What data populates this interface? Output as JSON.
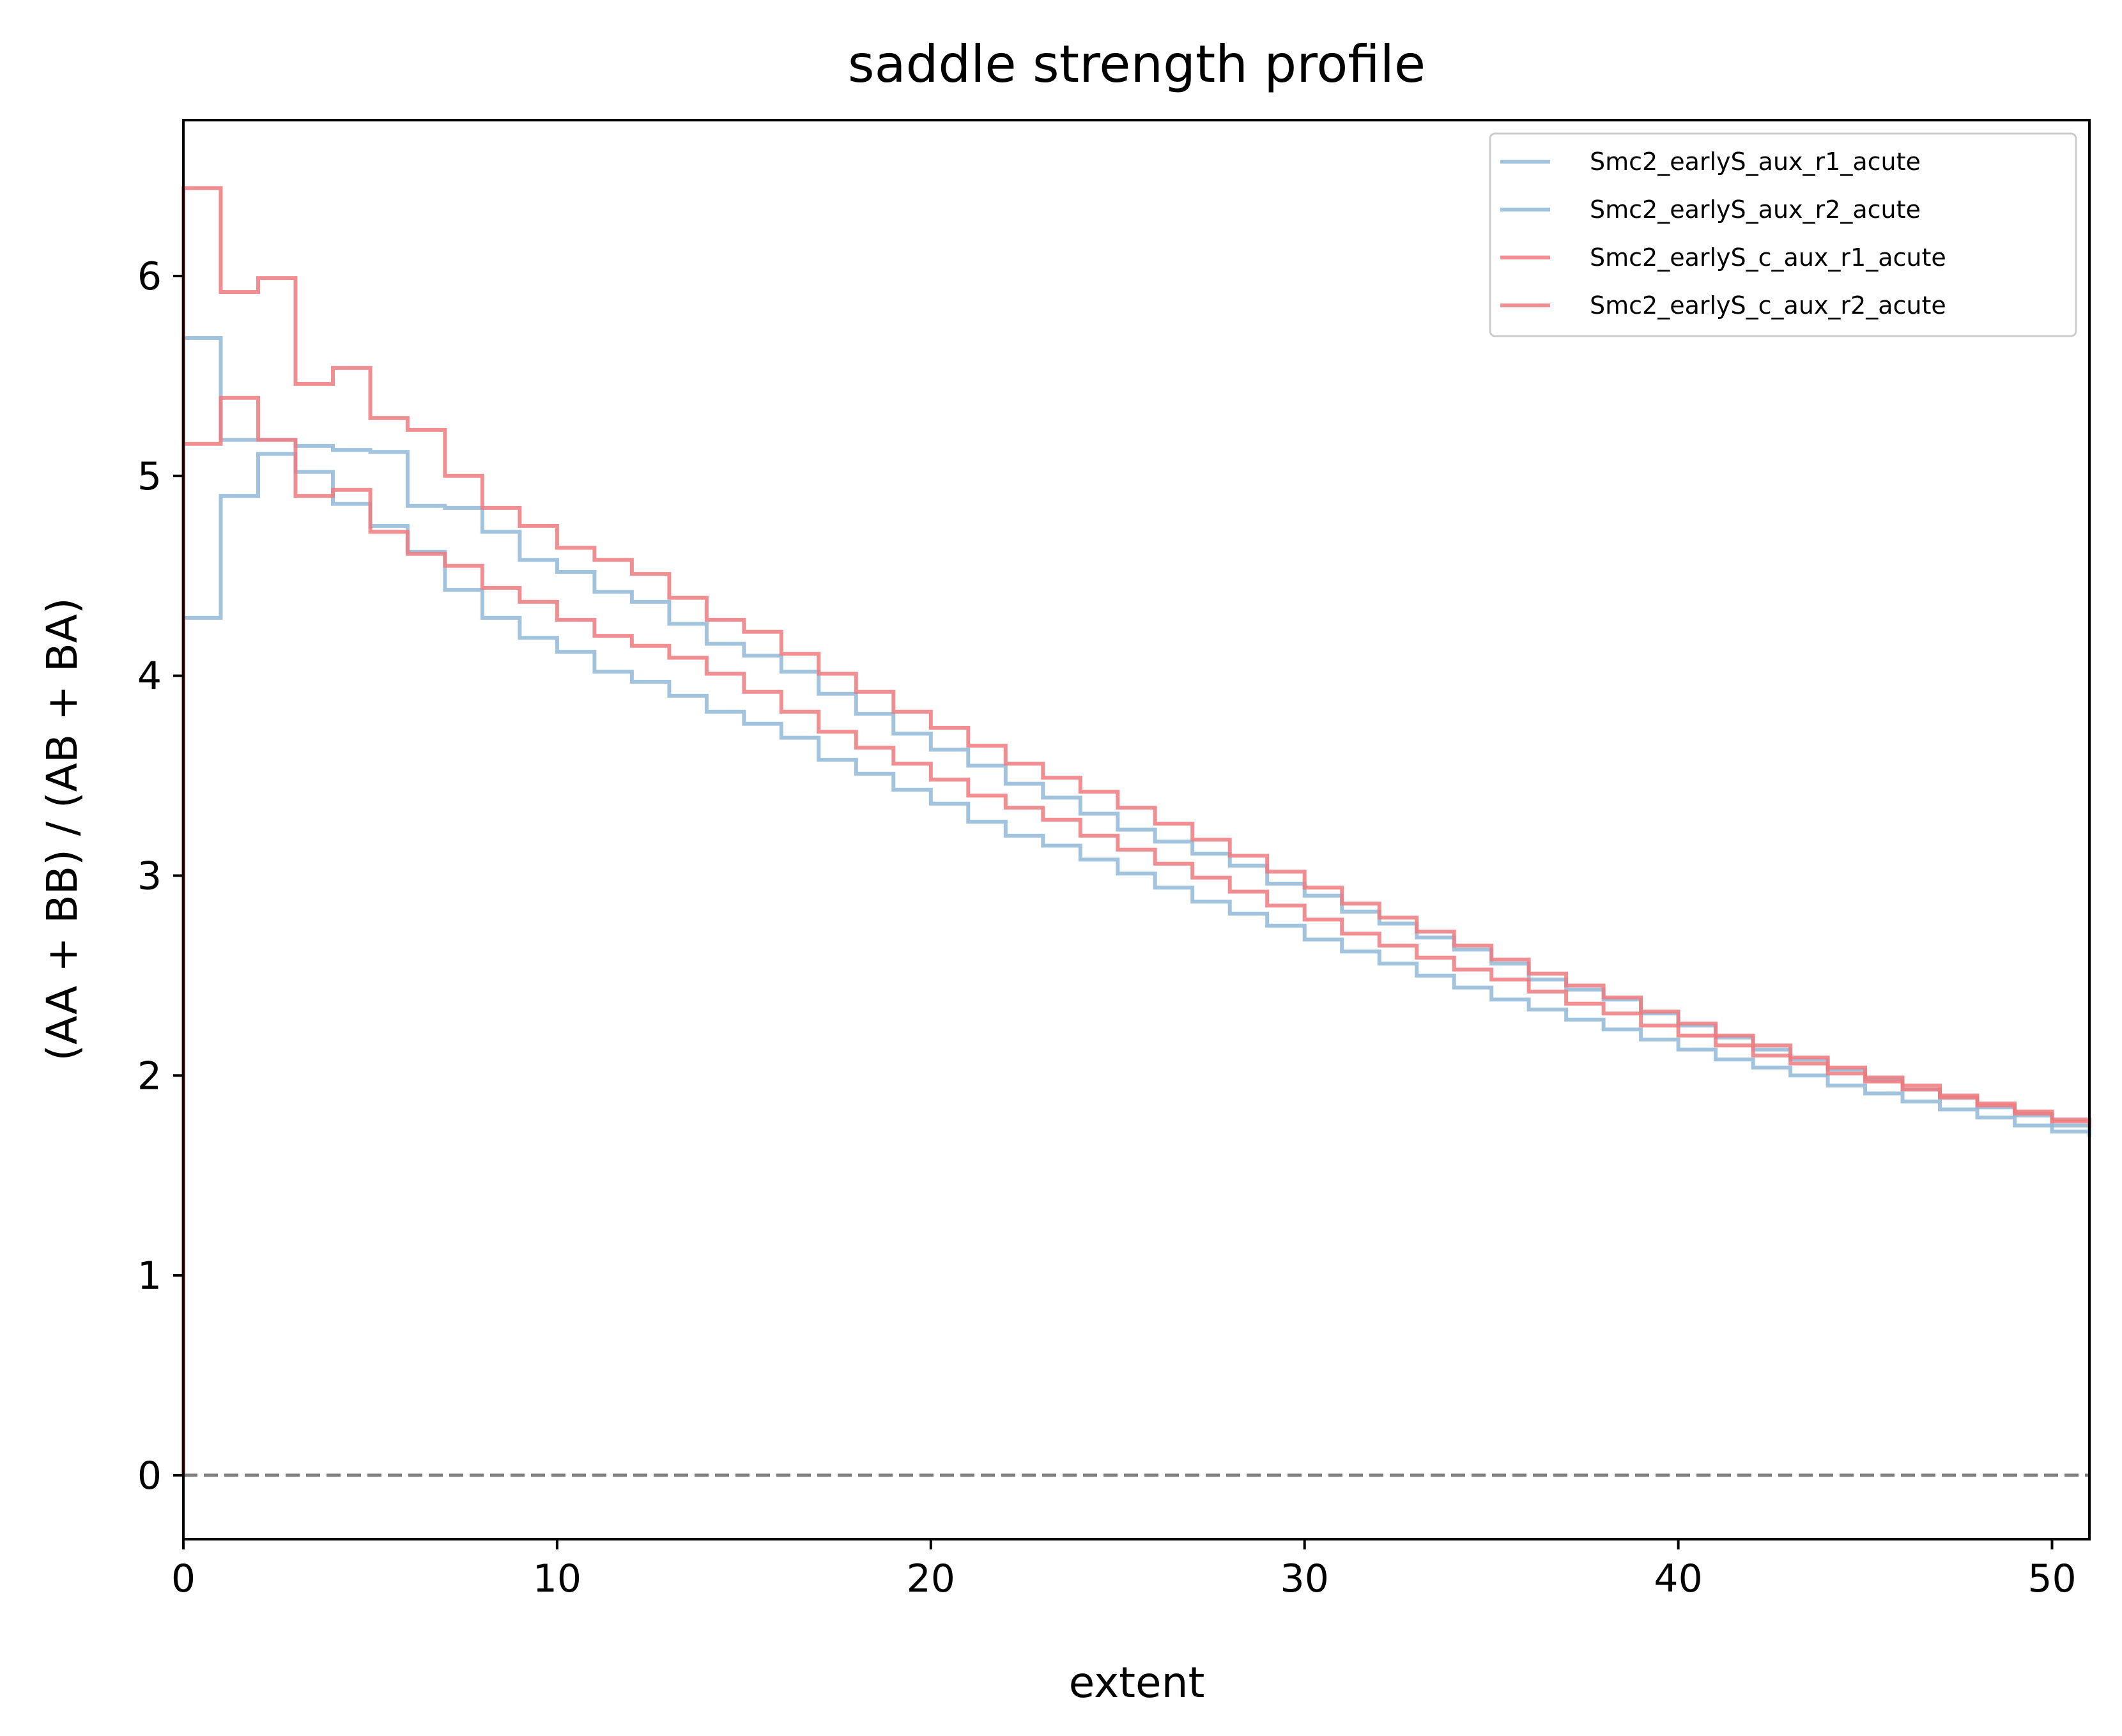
{
  "chart_data": {
    "type": "line",
    "step": "post",
    "title": "saddle strength profile",
    "xlabel": "extent",
    "ylabel": "(AA + BB) / (AB + BA)",
    "xlim": [
      0,
      51
    ],
    "ylim": [
      -0.32,
      6.78
    ],
    "xticks": [
      0,
      10,
      20,
      30,
      40,
      50
    ],
    "yticks": [
      0,
      1,
      2,
      3,
      4,
      5,
      6
    ],
    "grid": false,
    "legend_position": "top-right",
    "reference_line": {
      "y": 0,
      "style": "dashed",
      "color": "#808080"
    },
    "x": [
      0,
      1,
      2,
      3,
      4,
      5,
      6,
      7,
      8,
      9,
      10,
      11,
      12,
      13,
      14,
      15,
      16,
      17,
      18,
      19,
      20,
      21,
      22,
      23,
      24,
      25,
      26,
      27,
      28,
      29,
      30,
      31,
      32,
      33,
      34,
      35,
      36,
      37,
      38,
      39,
      40,
      41,
      42,
      43,
      44,
      45,
      46,
      47,
      48,
      49,
      50,
      51
    ],
    "series": [
      {
        "name": "Smc2_earlyS_aux_r1_acute",
        "color": "#90b8d8",
        "values": [
          5.69,
          5.18,
          5.18,
          5.15,
          5.13,
          5.12,
          4.85,
          4.84,
          4.72,
          4.58,
          4.52,
          4.42,
          4.37,
          4.26,
          4.16,
          4.1,
          4.02,
          3.91,
          3.81,
          3.71,
          3.63,
          3.55,
          3.46,
          3.39,
          3.31,
          3.23,
          3.17,
          3.11,
          3.05,
          2.96,
          2.9,
          2.82,
          2.76,
          2.69,
          2.63,
          2.56,
          2.48,
          2.43,
          2.38,
          2.31,
          2.25,
          2.19,
          2.13,
          2.08,
          2.03,
          1.98,
          1.93,
          1.89,
          1.84,
          1.8,
          1.75,
          1.69
        ]
      },
      {
        "name": "Smc2_earlyS_aux_r2_acute",
        "color": "#90b8d8",
        "values": [
          4.29,
          4.9,
          5.11,
          5.02,
          4.86,
          4.75,
          4.62,
          4.43,
          4.29,
          4.19,
          4.12,
          4.02,
          3.97,
          3.9,
          3.82,
          3.76,
          3.69,
          3.58,
          3.51,
          3.43,
          3.36,
          3.27,
          3.2,
          3.15,
          3.08,
          3.01,
          2.94,
          2.87,
          2.81,
          2.75,
          2.68,
          2.62,
          2.56,
          2.5,
          2.44,
          2.38,
          2.33,
          2.28,
          2.23,
          2.18,
          2.13,
          2.08,
          2.04,
          2.0,
          1.95,
          1.91,
          1.87,
          1.83,
          1.79,
          1.75,
          1.72,
          1.7
        ]
      },
      {
        "name": "Smc2_earlyS_c_aux_r1_acute",
        "color": "#ee7a7e",
        "values": [
          6.44,
          5.92,
          5.99,
          5.46,
          5.54,
          5.29,
          5.23,
          5.0,
          4.84,
          4.75,
          4.64,
          4.58,
          4.51,
          4.39,
          4.28,
          4.22,
          4.11,
          4.01,
          3.92,
          3.82,
          3.74,
          3.65,
          3.56,
          3.49,
          3.42,
          3.34,
          3.26,
          3.18,
          3.1,
          3.02,
          2.94,
          2.86,
          2.79,
          2.72,
          2.65,
          2.58,
          2.51,
          2.45,
          2.39,
          2.32,
          2.26,
          2.2,
          2.15,
          2.09,
          2.04,
          1.99,
          1.95,
          1.9,
          1.86,
          1.82,
          1.78,
          1.76
        ]
      },
      {
        "name": "Smc2_earlyS_c_aux_r2_acute",
        "color": "#ee7a7e",
        "values": [
          5.16,
          5.39,
          5.18,
          4.9,
          4.93,
          4.72,
          4.61,
          4.55,
          4.44,
          4.37,
          4.28,
          4.2,
          4.15,
          4.09,
          4.01,
          3.92,
          3.82,
          3.72,
          3.64,
          3.56,
          3.48,
          3.4,
          3.34,
          3.28,
          3.2,
          3.13,
          3.06,
          2.99,
          2.92,
          2.85,
          2.78,
          2.71,
          2.65,
          2.59,
          2.53,
          2.48,
          2.42,
          2.36,
          2.31,
          2.25,
          2.2,
          2.15,
          2.1,
          2.06,
          2.01,
          1.97,
          1.93,
          1.89,
          1.85,
          1.81,
          1.77,
          1.74
        ]
      }
    ]
  }
}
